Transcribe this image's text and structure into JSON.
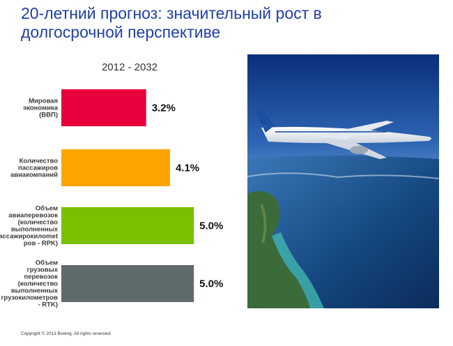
{
  "header": {
    "title_line1": "20-летний прогноз: значительный рост в",
    "title_line2": "долгосрочной перспективе"
  },
  "footer": {
    "copyright": "Copyright © 2013 Boeing. All rights reserved."
  },
  "photo": {
    "icon": "boeing-777-airplane-over-sea-photo"
  },
  "chart_data": {
    "type": "bar",
    "orientation": "horizontal",
    "title": "",
    "subtitle": "2012 - 2032",
    "xlabel": "",
    "ylabel": "",
    "xlim": [
      0,
      5.6
    ],
    "grid": false,
    "legend": "none",
    "categories": [
      [
        "Мировая",
        "экономика",
        "(ВВП)"
      ],
      [
        "Количество",
        "пассажиров",
        "авиакомпаний"
      ],
      [
        "Объем",
        "авиаперевозок",
        "(количество",
        "выполненных",
        "пассажирокилomet",
        "ров - RPK)"
      ],
      [
        "Объем",
        "грузовых",
        "перевозок",
        "(количество",
        "выполненных",
        "грузокилометров",
        "- RTK)"
      ]
    ],
    "values": [
      3.2,
      4.1,
      5.0,
      5.0
    ],
    "value_labels": [
      "3.2%",
      "4.1%",
      "5.0%",
      "5.0%"
    ],
    "colors": [
      "#e8003d",
      "#ffa400",
      "#7ac000",
      "#5f6a6a"
    ]
  }
}
